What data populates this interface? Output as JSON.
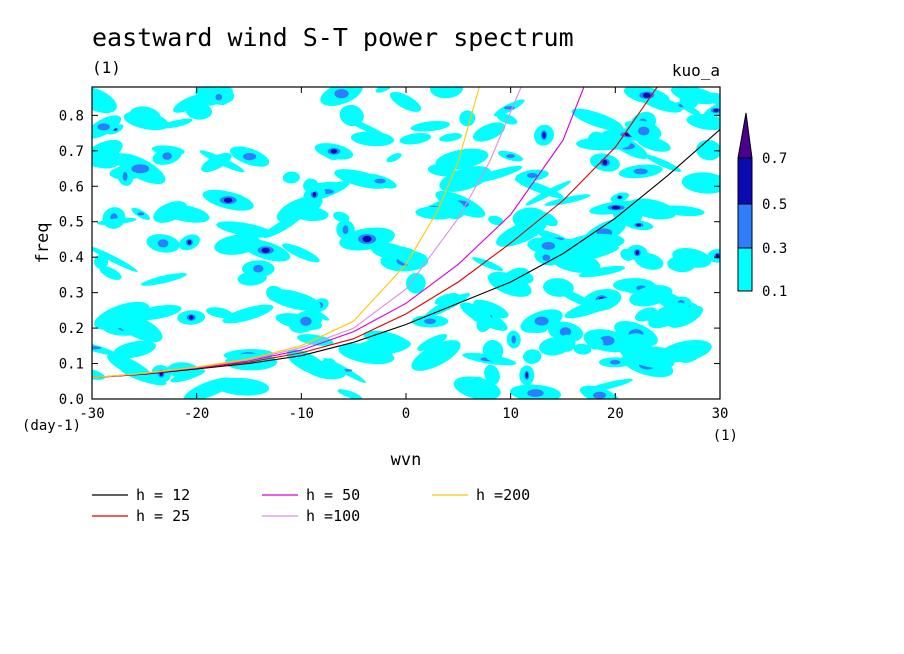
{
  "chart_data": {
    "type": "contour",
    "title": "eastward wind S-T power spectrum",
    "subtitle_left": "(1)",
    "subtitle_right": "kuo_a",
    "xlabel": "wvn",
    "ylabel": "freq",
    "x_unit": "(1)",
    "y_unit": "(day-1)",
    "xlim": [
      -30,
      30
    ],
    "ylim": [
      0,
      0.88
    ],
    "x_ticks": [
      -30,
      -20,
      -10,
      0,
      10,
      20,
      30
    ],
    "y_ticks": [
      0.0,
      0.1,
      0.2,
      0.3,
      0.4,
      0.5,
      0.6,
      0.7,
      0.8
    ],
    "x_tick_labels": [
      "-30",
      "-20",
      "-10",
      "0",
      "10",
      "20",
      "30"
    ],
    "y_tick_labels": [
      "0.0",
      "0.1",
      "0.2",
      "0.3",
      "0.4",
      "0.5",
      "0.6",
      "0.7",
      "0.8"
    ],
    "contour_levels": [
      0.1,
      0.3,
      0.5,
      0.7
    ],
    "colorbar_labels": [
      "0.7",
      "0.5",
      "0.3",
      "0.1"
    ],
    "level_colors": [
      "#00ffff",
      "#2e7dff",
      "#0a0ab4",
      "#4a008c"
    ],
    "series": [
      {
        "name": "h = 12",
        "color": "#000000",
        "x": [
          -30,
          -25,
          -20,
          -15,
          -10,
          -5,
          0,
          5,
          10,
          15,
          20,
          25,
          30
        ],
        "y": [
          0.06,
          0.07,
          0.085,
          0.1,
          0.122,
          0.16,
          0.21,
          0.27,
          0.33,
          0.41,
          0.51,
          0.63,
          0.76
        ]
      },
      {
        "name": "h = 25",
        "color": "#e00000",
        "x": [
          -30,
          -25,
          -20,
          -15,
          -10,
          -5,
          0,
          5,
          10,
          15,
          20,
          24
        ],
        "y": [
          0.06,
          0.071,
          0.087,
          0.104,
          0.13,
          0.17,
          0.24,
          0.33,
          0.44,
          0.56,
          0.71,
          0.88
        ]
      },
      {
        "name": "h = 50",
        "color": "#d400d4",
        "x": [
          -30,
          -25,
          -20,
          -15,
          -10,
          -5,
          0,
          5,
          10,
          15,
          17
        ],
        "y": [
          0.06,
          0.072,
          0.088,
          0.108,
          0.138,
          0.19,
          0.27,
          0.38,
          0.52,
          0.73,
          0.88
        ]
      },
      {
        "name": "h =100",
        "color": "#e08ce0",
        "x": [
          -30,
          -25,
          -20,
          -15,
          -10,
          -5,
          0,
          5,
          8,
          11
        ],
        "y": [
          0.06,
          0.072,
          0.089,
          0.11,
          0.145,
          0.2,
          0.31,
          0.51,
          0.67,
          0.88
        ]
      },
      {
        "name": "h =200",
        "color": "#ffc800",
        "x": [
          -30,
          -25,
          -20,
          -15,
          -10,
          -5,
          0,
          3,
          5,
          7
        ],
        "y": [
          0.06,
          0.073,
          0.09,
          0.113,
          0.15,
          0.22,
          0.38,
          0.53,
          0.67,
          0.88
        ]
      }
    ],
    "legend": [
      "h = 12",
      "h = 25",
      "h = 50",
      "h =100",
      "h =200"
    ],
    "legend_placement": "bottom-left"
  }
}
